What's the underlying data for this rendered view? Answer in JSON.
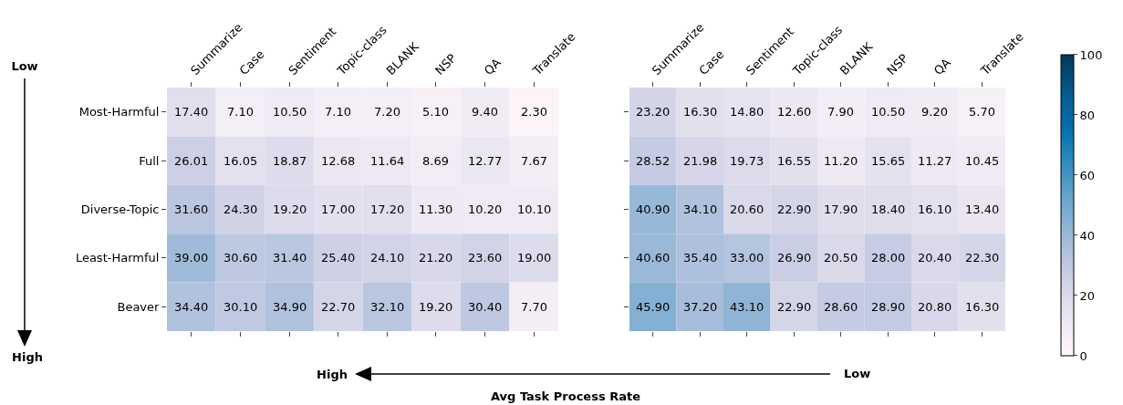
{
  "chart_data": [
    {
      "type": "heatmap",
      "categories": [
        "Summarize",
        "Case",
        "Sentiment",
        "Topic-class",
        "BLANK",
        "NSP",
        "QA",
        "Translate"
      ],
      "y_categories": [
        "Most-Harmful",
        "Full",
        "Diverse-Topic",
        "Least-Harmful",
        "Beaver"
      ],
      "cells": [
        [
          17.4,
          7.1,
          10.5,
          7.1,
          7.2,
          5.1,
          9.4,
          2.3
        ],
        [
          26.01,
          16.05,
          18.87,
          12.68,
          11.64,
          8.69,
          12.77,
          7.67
        ],
        [
          31.6,
          24.3,
          19.2,
          17.0,
          17.2,
          11.3,
          10.2,
          10.1
        ],
        [
          39.0,
          30.6,
          31.4,
          25.4,
          24.1,
          21.2,
          23.6,
          19.0
        ],
        [
          34.4,
          30.1,
          34.9,
          22.7,
          32.1,
          19.2,
          30.4,
          7.7
        ]
      ],
      "cell_labels": [
        [
          "17.40",
          "7.10",
          "10.50",
          "7.10",
          "7.20",
          "5.10",
          "9.40",
          "2.30"
        ],
        [
          "26.01",
          "16.05",
          "18.87",
          "12.68",
          "11.64",
          "8.69",
          "12.77",
          "7.67"
        ],
        [
          "31.60",
          "24.30",
          "19.20",
          "17.00",
          "17.20",
          "11.30",
          "10.20",
          "10.10"
        ],
        [
          "39.00",
          "30.60",
          "31.40",
          "25.40",
          "24.10",
          "21.20",
          "23.60",
          "19.00"
        ],
        [
          "34.40",
          "30.10",
          "34.90",
          "22.70",
          "32.10",
          "19.20",
          "30.40",
          "7.70"
        ]
      ],
      "annotations": [
        "Low",
        "High"
      ]
    },
    {
      "type": "heatmap",
      "categories": [
        "Summarize",
        "Case",
        "Sentiment",
        "Topic-class",
        "BLANK",
        "NSP",
        "QA",
        "Translate"
      ],
      "y_categories": [
        null,
        null,
        null,
        null,
        null
      ],
      "cells": [
        [
          23.2,
          16.3,
          14.8,
          12.6,
          7.9,
          10.5,
          9.2,
          5.7
        ],
        [
          28.52,
          21.98,
          19.73,
          16.55,
          11.2,
          15.65,
          11.27,
          10.45
        ],
        [
          40.9,
          34.1,
          20.6,
          22.9,
          17.9,
          18.4,
          16.1,
          13.4
        ],
        [
          40.6,
          35.4,
          33.0,
          26.9,
          20.5,
          28.0,
          20.4,
          22.3
        ],
        [
          45.9,
          37.2,
          43.1,
          22.9,
          28.6,
          28.9,
          20.8,
          16.3
        ]
      ],
      "cell_labels": [
        [
          "23.20",
          "16.30",
          "14.80",
          "12.60",
          "7.90",
          "10.50",
          "9.20",
          "5.70"
        ],
        [
          "28.52",
          "21.98",
          "19.73",
          "16.55",
          "11.20",
          "15.65",
          "11.27",
          "10.45"
        ],
        [
          "40.90",
          "34.10",
          "20.60",
          "22.90",
          "17.90",
          "18.40",
          "16.10",
          "13.40"
        ],
        [
          "40.60",
          "35.40",
          "33.00",
          "26.90",
          "20.50",
          "28.00",
          "20.40",
          "22.30"
        ],
        [
          "45.90",
          "37.20",
          "43.10",
          "22.90",
          "28.60",
          "28.90",
          "20.80",
          "16.30"
        ]
      ],
      "clim": [
        0,
        100
      ],
      "cticks": [
        0,
        20,
        40,
        60,
        80,
        100
      ],
      "tick_labels": "x",
      "annotations": [
        "High",
        "Low",
        "Avg Task Process Rate"
      ]
    }
  ]
}
